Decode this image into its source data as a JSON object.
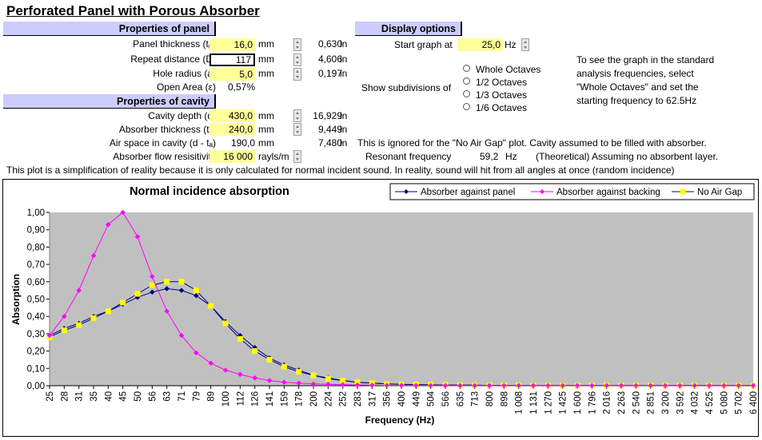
{
  "title": "Perforated Panel with Porous Absorber",
  "panel": {
    "header": "Properties of panel",
    "thickness": {
      "label": "Panel thickness (tₚ)",
      "value": "16,0",
      "unit": "mm",
      "inch": "0,630",
      "inch_unit": "in"
    },
    "repeat": {
      "label": "Repeat distance (D)",
      "value": "117",
      "unit": "mm",
      "inch": "4,606",
      "inch_unit": "in"
    },
    "radius": {
      "label": "Hole radius (a)",
      "value": "5,0",
      "unit": "mm",
      "inch": "0,197",
      "inch_unit": "in"
    },
    "open_area": {
      "label": "Open Area (ε)",
      "value": "0,57%"
    }
  },
  "cavity": {
    "header": "Properties of cavity",
    "depth": {
      "label": "Cavity depth (d)",
      "value": "430,0",
      "unit": "mm",
      "inch": "16,929",
      "inch_unit": "in"
    },
    "absorber": {
      "label": "Absorber thickness (tₐ)",
      "value": "240,0",
      "unit": "mm",
      "inch": "9,449",
      "inch_unit": "in"
    },
    "air": {
      "label": "Air space in cavity (d - tₐ)",
      "value": "190,0",
      "unit": "mm",
      "inch": "7,480",
      "inch_unit": "in"
    },
    "flow": {
      "label": "Absorber flow resisitivity",
      "value": "16 000",
      "unit": "rayls/m"
    }
  },
  "display": {
    "header": "Display options",
    "start_label": "Start graph at",
    "start_value": "25,0",
    "start_unit": "Hz",
    "subdiv_label": "Show subdivisions of",
    "options": [
      "Whole Octaves",
      "1/2 Octaves",
      "1/3 Octaves",
      "1/6 Octaves"
    ],
    "help": [
      "To see the graph in the standard",
      "analysis frequencies, select",
      "\"Whole Octaves\" and set the",
      "starting frequency to 62.5Hz"
    ]
  },
  "notes": {
    "no_air_gap": "This is ignored for the \"No Air Gap\" plot.  Cavity assumed to be filled with absorber.",
    "resonant_label": "Resonant frequency",
    "resonant_value": "59,2",
    "resonant_unit": "Hz",
    "resonant_note": "(Theoretical) Assuming no absorbent layer.",
    "simplification": "This plot is a simplification of reality because it is only calculated for normal incident sound.  In reality, sound will hit from all angles at once (random incidence)"
  },
  "chart_data": {
    "type": "line",
    "title": "Normal incidence absorption",
    "xlabel": "Frequency (Hz)",
    "ylabel": "Absorption",
    "ylim": [
      0,
      1
    ],
    "yticks": [
      "0,00",
      "0,10",
      "0,20",
      "0,30",
      "0,40",
      "0,50",
      "0,60",
      "0,70",
      "0,80",
      "0,90",
      "1,00"
    ],
    "categories": [
      "25",
      "28",
      "31",
      "35",
      "40",
      "45",
      "50",
      "56",
      "63",
      "71",
      "79",
      "89",
      "100",
      "112",
      "126",
      "141",
      "159",
      "178",
      "200",
      "224",
      "252",
      "283",
      "317",
      "356",
      "400",
      "449",
      "504",
      "566",
      "635",
      "713",
      "800",
      "898",
      "1 008",
      "1 131",
      "1 270",
      "1 425",
      "1 600",
      "1 796",
      "2 016",
      "2 263",
      "2 540",
      "2 851",
      "3 200",
      "3 592",
      "4 032",
      "4 525",
      "5 080",
      "5 702",
      "6 400"
    ],
    "legend_position": "top-right",
    "series": [
      {
        "name": "Absorber against panel",
        "color": "#000080",
        "marker": "diamond",
        "values": [
          0.29,
          0.33,
          0.36,
          0.4,
          0.43,
          0.47,
          0.51,
          0.54,
          0.56,
          0.55,
          0.52,
          0.46,
          0.37,
          0.29,
          0.22,
          0.16,
          0.12,
          0.09,
          0.06,
          0.045,
          0.03,
          0.02,
          0.015,
          0.01,
          0.008,
          0.006,
          0.005,
          0.004,
          0.003,
          0.003,
          0.002,
          0.002,
          0.002,
          0.001,
          0.001,
          0.001,
          0.001,
          0.001,
          0.001,
          0.001,
          0.001,
          0.001,
          0.001,
          0.001,
          0.001,
          0.001,
          0.001,
          0.001,
          0.001
        ]
      },
      {
        "name": "Absorber against backing",
        "color": "#ff00ff",
        "marker": "diamond",
        "values": [
          0.29,
          0.4,
          0.55,
          0.75,
          0.93,
          1.0,
          0.86,
          0.63,
          0.43,
          0.29,
          0.19,
          0.13,
          0.09,
          0.065,
          0.045,
          0.03,
          0.02,
          0.015,
          0.01,
          0.008,
          0.006,
          0.004,
          0.003,
          0.002,
          0.002,
          0.001,
          0.001,
          0.001,
          0.001,
          0.001,
          0.001,
          0.001,
          0.001,
          0.001,
          0.001,
          0.001,
          0.001,
          0.001,
          0.001,
          0.001,
          0.001,
          0.001,
          0.001,
          0.001,
          0.001,
          0.001,
          0.001,
          0.001,
          0.001
        ]
      },
      {
        "name": "No Air Gap",
        "color": "#ffff00",
        "marker": "square",
        "values": [
          0.28,
          0.32,
          0.35,
          0.39,
          0.43,
          0.48,
          0.53,
          0.58,
          0.6,
          0.6,
          0.55,
          0.46,
          0.36,
          0.27,
          0.2,
          0.15,
          0.11,
          0.08,
          0.06,
          0.04,
          0.03,
          0.02,
          0.015,
          0.01,
          0.008,
          0.006,
          0.005,
          0.004,
          0.003,
          0.003,
          0.002,
          0.002,
          0.002,
          0.001,
          0.001,
          0.001,
          0.001,
          0.001,
          0.001,
          0.001,
          0.001,
          0.001,
          0.001,
          0.001,
          0.001,
          0.001,
          0.001,
          0.001,
          0.001
        ]
      }
    ]
  }
}
